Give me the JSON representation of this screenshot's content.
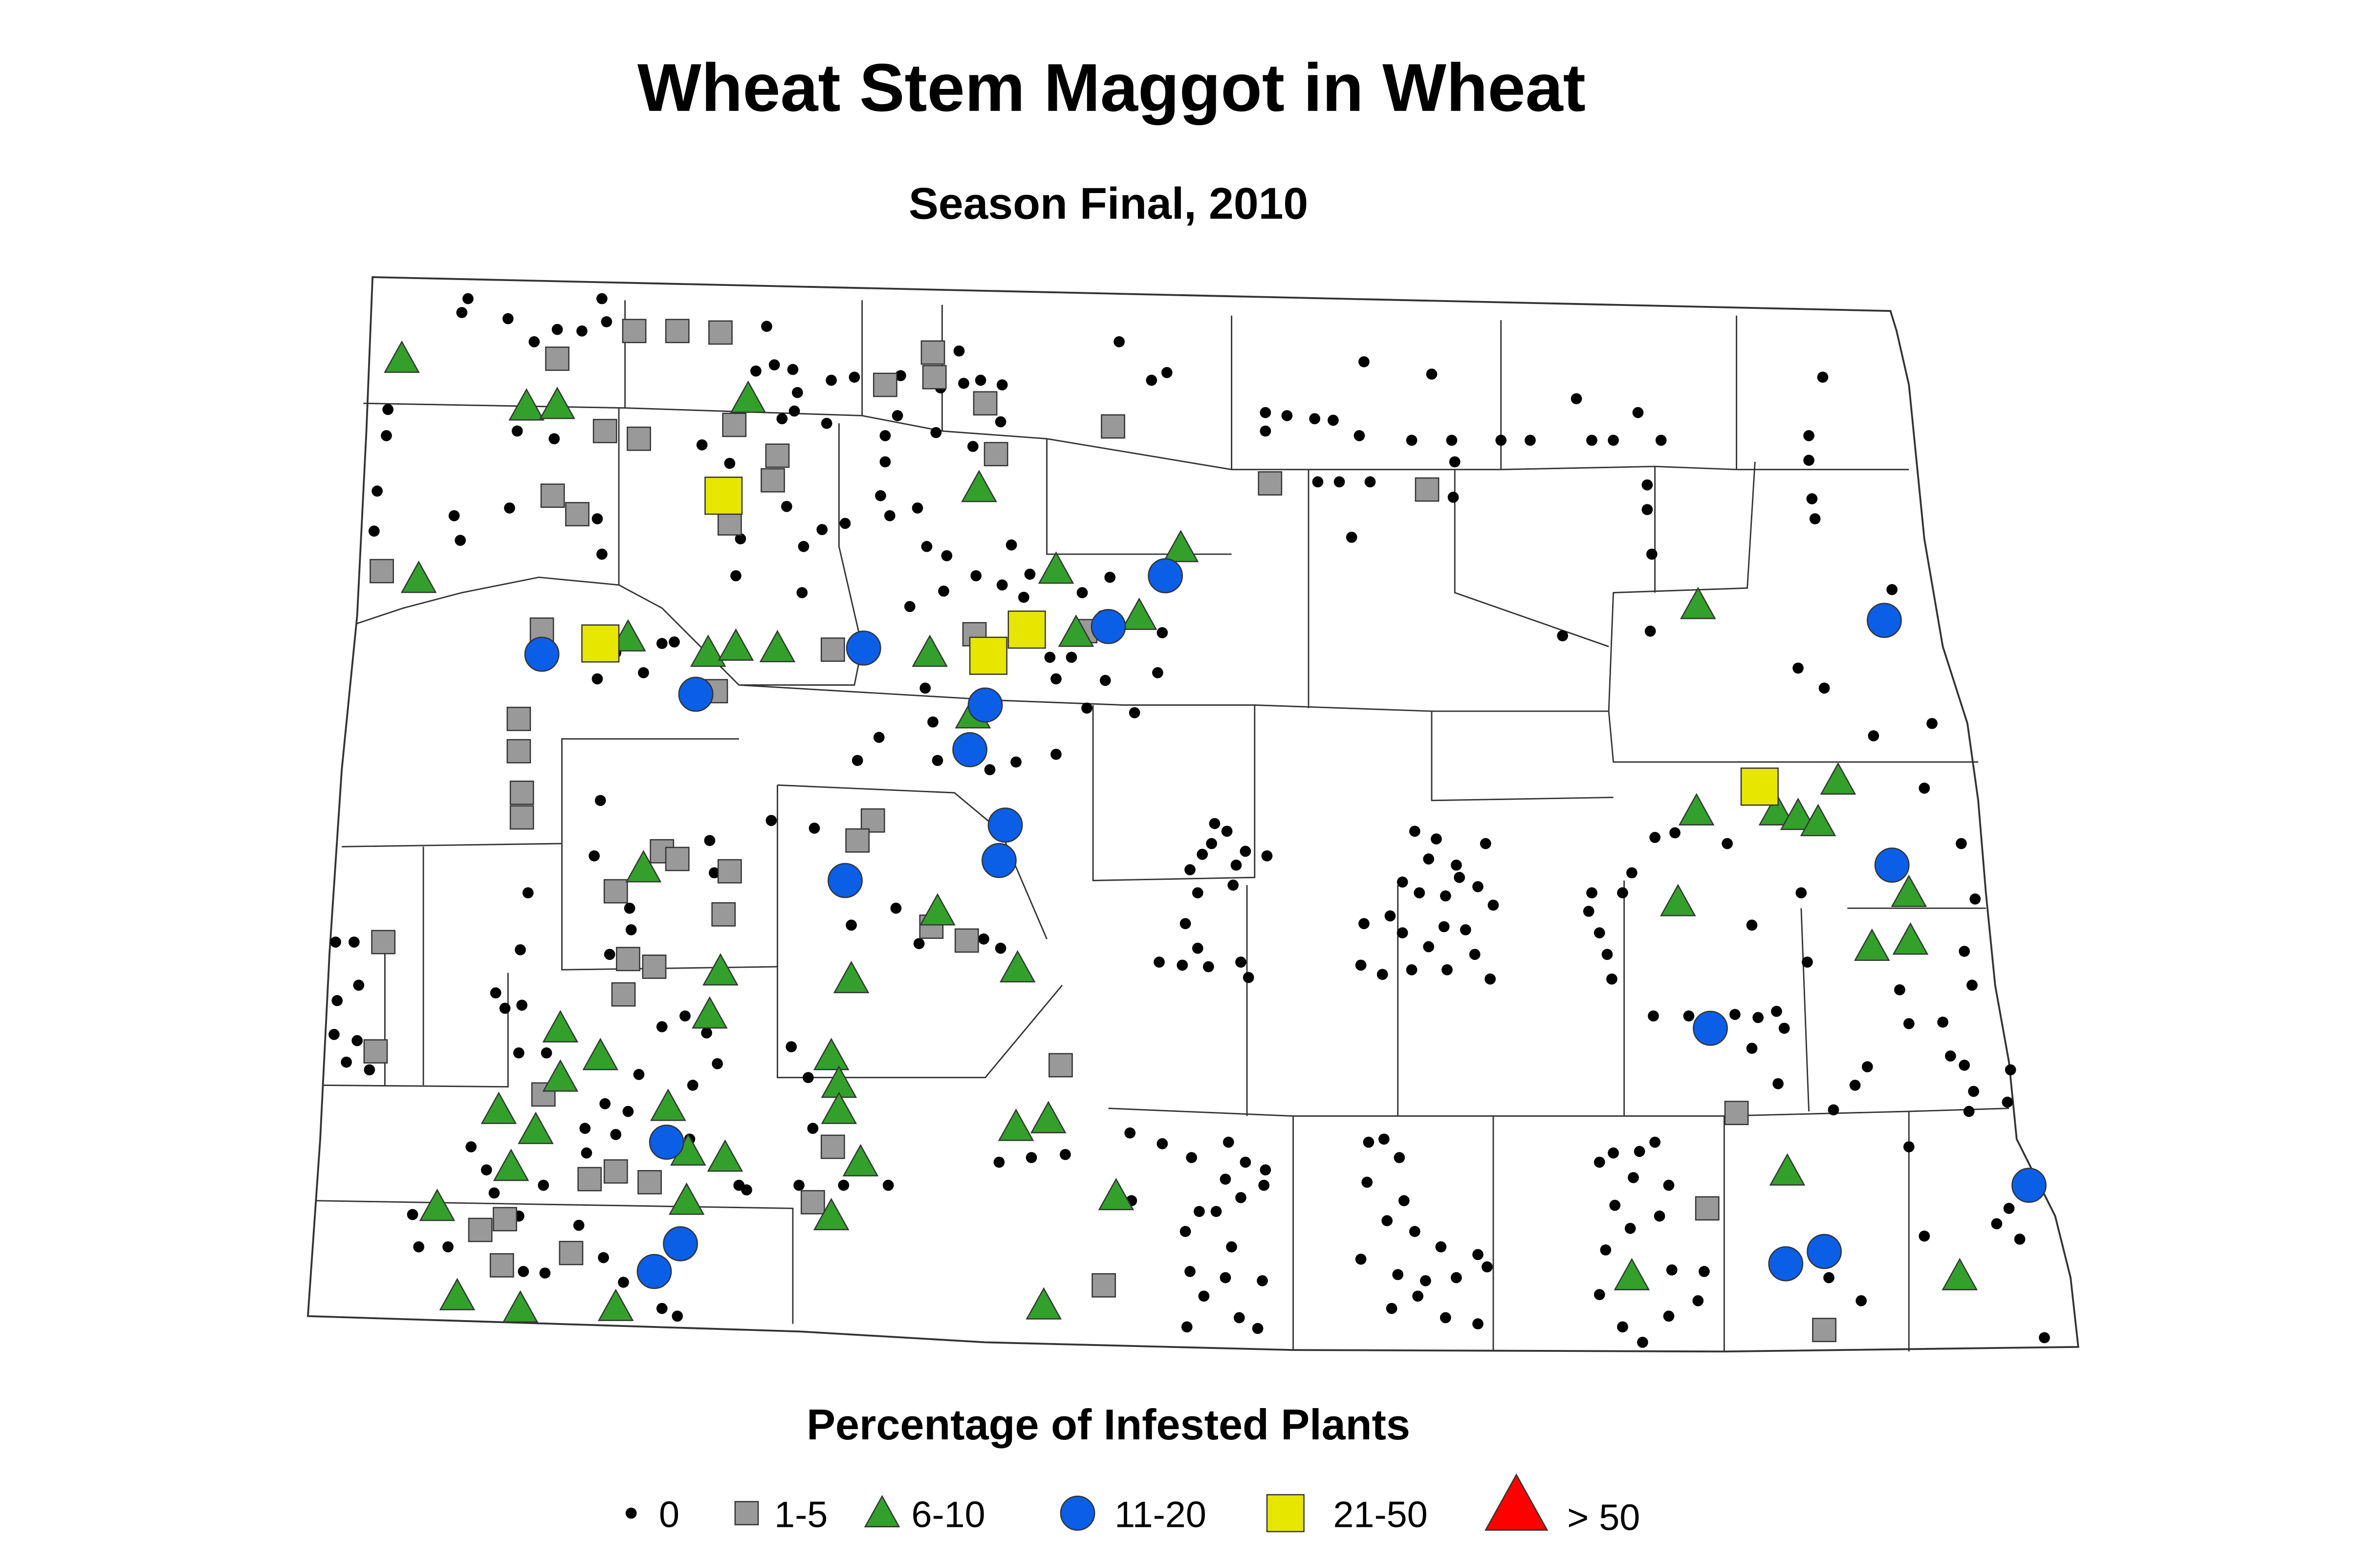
{
  "header": {
    "title": "Wheat Stem Maggot in Wheat",
    "subtitle": "Season Final, 2010"
  },
  "legend": {
    "title": "Percentage of Infested Plants",
    "items": [
      {
        "label": "0",
        "shape": "dot",
        "color": "#000000"
      },
      {
        "label": "1-5",
        "shape": "square",
        "color": "#999999"
      },
      {
        "label": "6-10",
        "shape": "triangle",
        "color": "#33a02c"
      },
      {
        "label": "11-20",
        "shape": "circle",
        "color": "#0b5ee6"
      },
      {
        "label": "21-50",
        "shape": "square",
        "color": "#e6e600"
      },
      {
        "label": "> 50",
        "shape": "triangle",
        "color": "#ff0000"
      }
    ]
  }
}
